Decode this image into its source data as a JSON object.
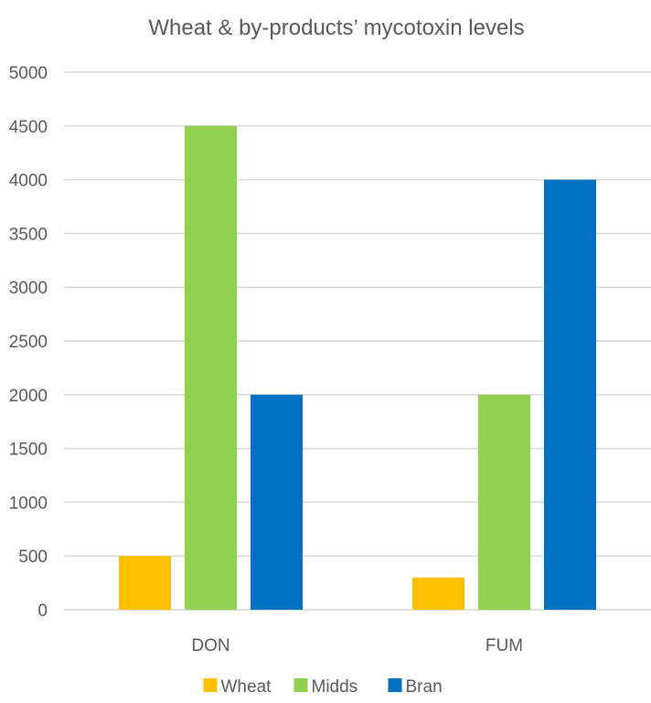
{
  "chart_data": {
    "type": "bar",
    "title": "Wheat & by-products’ mycotoxin levels",
    "categories": [
      "DON",
      "FUM"
    ],
    "series": [
      {
        "name": "Wheat",
        "color": "#FFC000",
        "values": [
          500,
          300
        ]
      },
      {
        "name": "Midds",
        "color": "#92D050",
        "values": [
          4500,
          2000
        ]
      },
      {
        "name": "Bran",
        "color": "#0070C0",
        "values": [
          2000,
          4000
        ]
      }
    ],
    "ylim": [
      0,
      5000
    ],
    "yticks": [
      0,
      500,
      1000,
      1500,
      2000,
      2500,
      3000,
      3500,
      4000,
      4500,
      5000
    ],
    "grid": true,
    "legend_position": "bottom"
  }
}
